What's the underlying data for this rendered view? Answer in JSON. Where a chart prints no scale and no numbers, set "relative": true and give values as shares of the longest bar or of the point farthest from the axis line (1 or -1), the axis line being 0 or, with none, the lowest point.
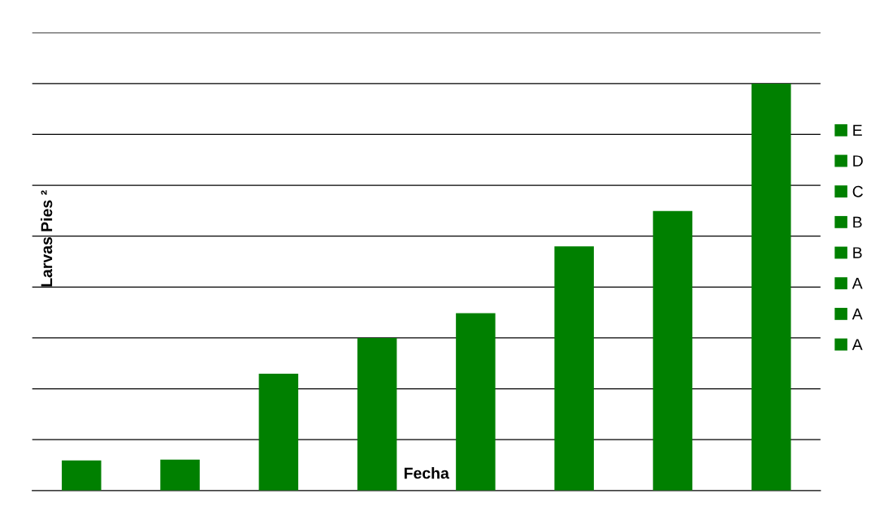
{
  "chart_data": {
    "type": "bar",
    "stacked": true,
    "relative": true,
    "xlabel": "Fecha",
    "ylabel": "Larvas Pies ²",
    "categories": [
      null,
      null,
      null,
      null,
      null,
      null,
      null,
      null
    ],
    "series": [
      {
        "name": "A",
        "color": "#008000",
        "values": [
          0.074,
          null,
          null,
          null,
          null,
          null,
          null,
          null
        ]
      },
      {
        "name": "A",
        "color": "#008000",
        "values": [
          null,
          0.076,
          null,
          null,
          null,
          null,
          null,
          null
        ]
      },
      {
        "name": "A",
        "color": "#008000",
        "values": [
          null,
          null,
          0.287,
          null,
          null,
          null,
          null,
          null
        ]
      },
      {
        "name": "B",
        "color": "#008000",
        "values": [
          null,
          null,
          null,
          0.375,
          null,
          null,
          null,
          null
        ]
      },
      {
        "name": "B",
        "color": "#008000",
        "values": [
          null,
          null,
          null,
          null,
          0.436,
          null,
          null,
          null
        ]
      },
      {
        "name": "C",
        "color": "#008000",
        "values": [
          null,
          null,
          null,
          null,
          null,
          0.6,
          null,
          null
        ]
      },
      {
        "name": "D",
        "color": "#008000",
        "values": [
          null,
          null,
          null,
          null,
          null,
          null,
          0.687,
          null
        ]
      },
      {
        "name": "E",
        "color": "#008000",
        "values": [
          null,
          null,
          null,
          null,
          null,
          null,
          null,
          1
        ]
      }
    ],
    "grid": "y",
    "legend": "right"
  }
}
